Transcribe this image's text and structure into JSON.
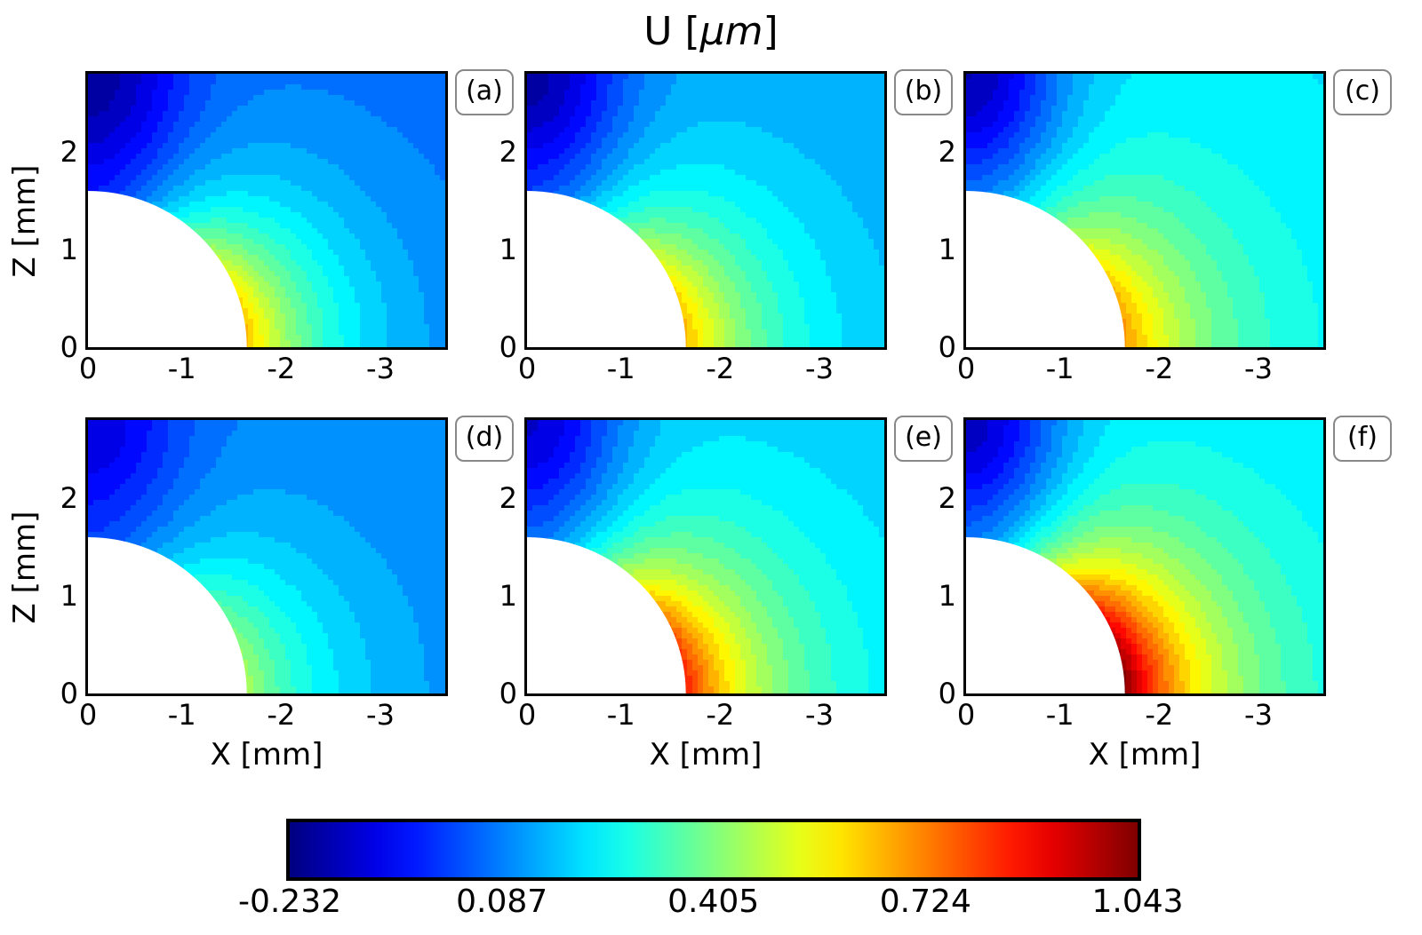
{
  "title_text": "U [",
  "title_unit": "μm",
  "title_close": "]",
  "panels": [
    {
      "label": "(a)",
      "case": 0
    },
    {
      "label": "(b)",
      "case": 1
    },
    {
      "label": "(c)",
      "case": 2
    },
    {
      "label": "(d)",
      "case": 3
    },
    {
      "label": "(e)",
      "case": 4
    },
    {
      "label": "(f)",
      "case": 5
    }
  ],
  "axes": {
    "xlabel": "X [mm]",
    "ylabel": "Z [mm]",
    "xticks": [
      "0",
      "-1",
      "-2",
      "-3"
    ],
    "yticks": [
      "0",
      "1",
      "2"
    ],
    "xlim": [
      0,
      -3.6
    ],
    "ylim": [
      0,
      2.8
    ]
  },
  "colorbar": {
    "ticks": [
      "-0.232",
      "0.087",
      "0.405",
      "0.724",
      "1.043"
    ],
    "min": -0.232,
    "max": 1.043,
    "colormap": "jet"
  },
  "chart_data": {
    "type": "heatmap",
    "title": "U [μm]",
    "xlabel": "X [mm]",
    "ylabel": "Z [mm]",
    "xlim": [
      0,
      -3.6
    ],
    "ylim": [
      0,
      2.8
    ],
    "hole_radius": 1.6,
    "colorbar_range": [
      -0.232,
      1.043
    ],
    "panels": [
      {
        "label": "(a)",
        "value_at_hole_base": 0.65,
        "value_top_left": -0.2,
        "value_far_field": 0.05
      },
      {
        "label": "(b)",
        "value_at_hole_base": 0.66,
        "value_top_left": -0.19,
        "value_far_field": 0.12
      },
      {
        "label": "(c)",
        "value_at_hole_base": 0.7,
        "value_top_left": -0.17,
        "value_far_field": 0.2
      },
      {
        "label": "(d)",
        "value_at_hole_base": 0.45,
        "value_top_left": -0.12,
        "value_far_field": 0.08
      },
      {
        "label": "(e)",
        "value_at_hole_base": 0.85,
        "value_top_left": -0.13,
        "value_far_field": 0.17
      },
      {
        "label": "(f)",
        "value_at_hole_base": 1.04,
        "value_top_left": -0.15,
        "value_far_field": 0.2
      }
    ]
  }
}
